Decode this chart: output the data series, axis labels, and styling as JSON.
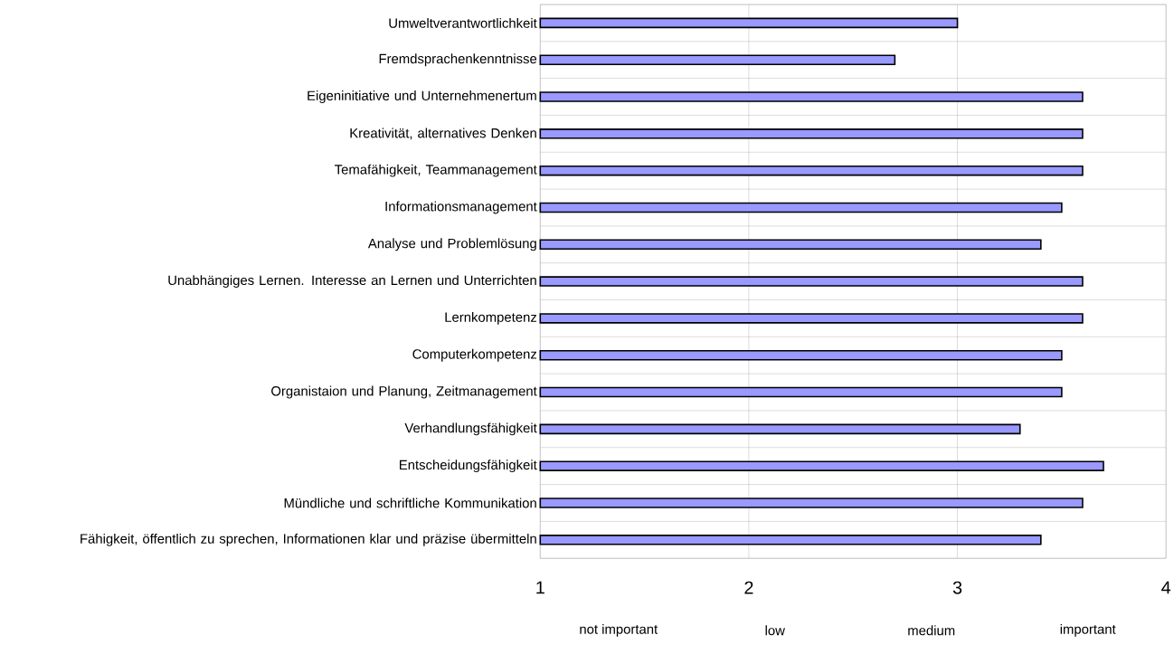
{
  "chart_data": {
    "type": "bar",
    "orientation": "horizontal",
    "categories": [
      "Umweltverantwortlichkeit",
      "Fremdsprachenkenntnisse",
      "Eigeninitiative und Unternehmenertum",
      "Kreativität, alternatives Denken",
      "Temafähigkeit, Teammanagement",
      "Informationsmanagement",
      "Analyse und Problemlösung",
      "Unabhängiges Lernen. Interesse an Lernen und Unterrichten",
      "Lernkompetenz",
      "Computerkompetenz",
      "Organistaion und Planung, Zeitmanagement",
      "Verhandlungsfähigkeit",
      "Entscheidungsfähigkeit",
      "Mündliche und schriftliche Kommunikation",
      "Fähigkeit, öffentlich zu sprechen, Informationen klar und präzise übermitteln"
    ],
    "values": [
      3.0,
      2.7,
      3.6,
      3.6,
      3.6,
      3.5,
      3.4,
      3.6,
      3.6,
      3.5,
      3.5,
      3.3,
      3.7,
      3.6,
      3.4
    ],
    "color": "#9999ff",
    "xlim": [
      1,
      4
    ],
    "xticks": [
      1,
      2,
      3,
      4
    ],
    "grid": true,
    "annotations": [
      "not important",
      "low",
      "medium",
      "important"
    ]
  }
}
